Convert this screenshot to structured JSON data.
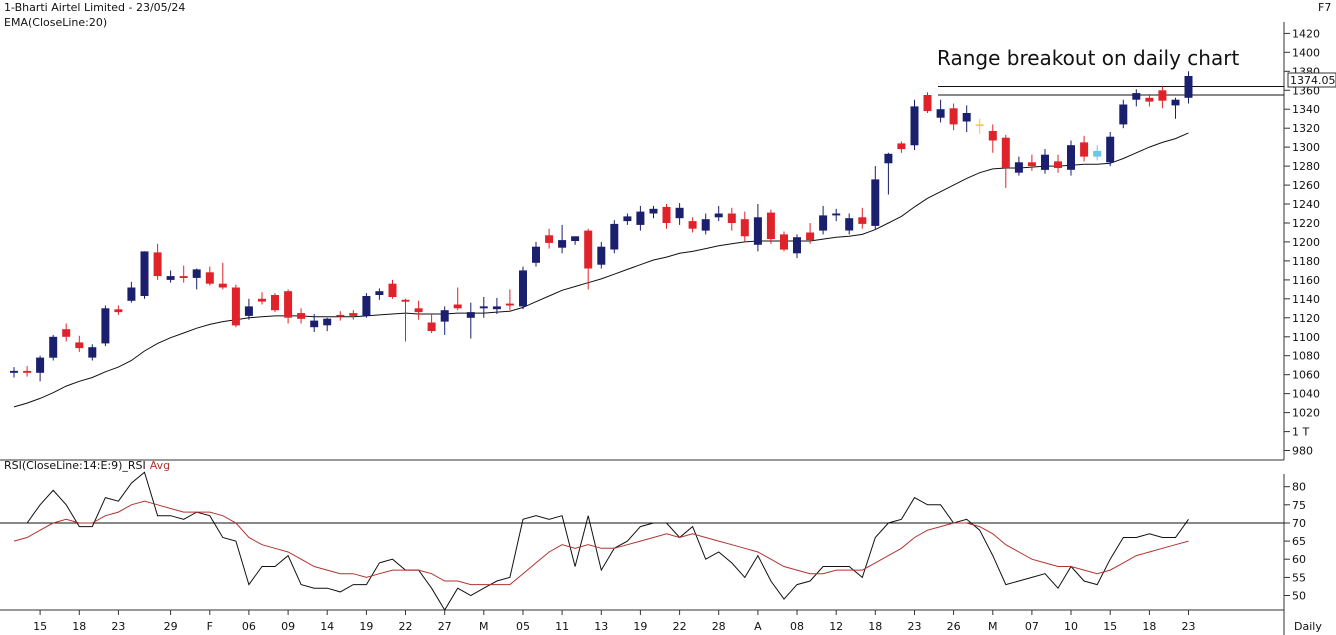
{
  "header": {
    "title": "1-Bharti Airtel Limited - 23/05/24",
    "indicator": "EMA(CloseLine:20)",
    "hotkey": "F7"
  },
  "annotation": "Range breakout on daily chart",
  "price_label": "1374.05",
  "rsi_label": {
    "name": "RSI(CloseLine:14:E:9)_RSI",
    "avg": "Avg"
  },
  "period_label": "Daily",
  "colors": {
    "up": "#1a1f6e",
    "down": "#e0232b",
    "neutral": "#f0c93a",
    "neutral2": "#69c7e8",
    "ema": "#111111",
    "rsi": "#111111",
    "rsi_avg": "#b3332e"
  },
  "chart_data": [
    {
      "type": "candlestick",
      "title": "1-Bharti Airtel Limited - 23/05/24",
      "series_name": "EMA(CloseLine:20)",
      "y_ticks": [
        "1420",
        "1400",
        "1380",
        "1360",
        "1340",
        "1320",
        "1300",
        "1280",
        "1260",
        "1240",
        "1220",
        "1200",
        "1180",
        "1160",
        "1140",
        "1120",
        "1100",
        "1080",
        "1060",
        "1040",
        "1020",
        "1 T",
        "980"
      ],
      "ylim": [
        970,
        1432
      ],
      "x_ticks": [
        "15",
        "18",
        "23",
        "29",
        "F",
        "06",
        "09",
        "14",
        "19",
        "22",
        "27",
        "M",
        "05",
        "11",
        "13",
        "19",
        "22",
        "28",
        "A",
        "08",
        "12",
        "18",
        "23",
        "26",
        "M",
        "07",
        "10",
        "15",
        "18",
        "23"
      ],
      "x_tick_index": [
        2,
        5,
        8,
        12,
        15,
        18,
        21,
        24,
        27,
        30,
        33,
        36,
        39,
        42,
        45,
        48,
        51,
        54,
        57,
        60,
        63,
        66,
        69,
        72,
        75,
        78,
        81,
        84,
        87,
        90
      ],
      "reference_lines": [
        1364,
        1355
      ],
      "candles": [
        {
          "o": 1062,
          "h": 1068,
          "l": 1057,
          "c": 1064
        },
        {
          "o": 1064,
          "h": 1069,
          "l": 1058,
          "c": 1062
        },
        {
          "o": 1062,
          "h": 1080,
          "l": 1053,
          "c": 1078
        },
        {
          "o": 1078,
          "h": 1102,
          "l": 1075,
          "c": 1100
        },
        {
          "o": 1108,
          "h": 1114,
          "l": 1095,
          "c": 1100
        },
        {
          "o": 1094,
          "h": 1101,
          "l": 1084,
          "c": 1088
        },
        {
          "o": 1078,
          "h": 1092,
          "l": 1075,
          "c": 1089
        },
        {
          "o": 1093,
          "h": 1133,
          "l": 1090,
          "c": 1130
        },
        {
          "o": 1129,
          "h": 1133,
          "l": 1123,
          "c": 1126
        },
        {
          "o": 1138,
          "h": 1158,
          "l": 1136,
          "c": 1152
        },
        {
          "o": 1143,
          "h": 1190,
          "l": 1140,
          "c": 1190
        },
        {
          "o": 1189,
          "h": 1198,
          "l": 1160,
          "c": 1164
        },
        {
          "o": 1160,
          "h": 1170,
          "l": 1157,
          "c": 1164
        },
        {
          "o": 1164,
          "h": 1175,
          "l": 1157,
          "c": 1162
        },
        {
          "o": 1162,
          "h": 1172,
          "l": 1150,
          "c": 1171
        },
        {
          "o": 1168,
          "h": 1174,
          "l": 1154,
          "c": 1156
        },
        {
          "o": 1156,
          "h": 1178,
          "l": 1150,
          "c": 1152
        },
        {
          "o": 1152,
          "h": 1155,
          "l": 1110,
          "c": 1112
        },
        {
          "o": 1122,
          "h": 1140,
          "l": 1118,
          "c": 1132
        },
        {
          "o": 1140,
          "h": 1147,
          "l": 1134,
          "c": 1137
        },
        {
          "o": 1144,
          "h": 1146,
          "l": 1126,
          "c": 1128
        },
        {
          "o": 1148,
          "h": 1150,
          "l": 1114,
          "c": 1120
        },
        {
          "o": 1125,
          "h": 1130,
          "l": 1114,
          "c": 1119
        },
        {
          "o": 1110,
          "h": 1124,
          "l": 1105,
          "c": 1117
        },
        {
          "o": 1112,
          "h": 1120,
          "l": 1106,
          "c": 1119
        },
        {
          "o": 1123,
          "h": 1127,
          "l": 1117,
          "c": 1122
        },
        {
          "o": 1125,
          "h": 1128,
          "l": 1118,
          "c": 1122
        },
        {
          "o": 1122,
          "h": 1146,
          "l": 1120,
          "c": 1143
        },
        {
          "o": 1144,
          "h": 1151,
          "l": 1139,
          "c": 1148
        },
        {
          "o": 1156,
          "h": 1160,
          "l": 1140,
          "c": 1142
        },
        {
          "o": 1139,
          "h": 1140,
          "l": 1095,
          "c": 1137
        },
        {
          "o": 1130,
          "h": 1138,
          "l": 1118,
          "c": 1126
        },
        {
          "o": 1115,
          "h": 1124,
          "l": 1104,
          "c": 1106
        },
        {
          "o": 1116,
          "h": 1132,
          "l": 1102,
          "c": 1128
        },
        {
          "o": 1134,
          "h": 1152,
          "l": 1128,
          "c": 1130
        },
        {
          "o": 1120,
          "h": 1136,
          "l": 1098,
          "c": 1126
        },
        {
          "o": 1130,
          "h": 1142,
          "l": 1120,
          "c": 1132
        },
        {
          "o": 1129,
          "h": 1141,
          "l": 1124,
          "c": 1132
        },
        {
          "o": 1135,
          "h": 1150,
          "l": 1128,
          "c": 1133
        },
        {
          "o": 1132,
          "h": 1174,
          "l": 1129,
          "c": 1170
        },
        {
          "o": 1178,
          "h": 1200,
          "l": 1174,
          "c": 1195
        },
        {
          "o": 1207,
          "h": 1214,
          "l": 1193,
          "c": 1199
        },
        {
          "o": 1194,
          "h": 1218,
          "l": 1188,
          "c": 1202
        },
        {
          "o": 1201,
          "h": 1206,
          "l": 1197,
          "c": 1206
        },
        {
          "o": 1212,
          "h": 1214,
          "l": 1150,
          "c": 1172
        },
        {
          "o": 1176,
          "h": 1200,
          "l": 1172,
          "c": 1195
        },
        {
          "o": 1192,
          "h": 1223,
          "l": 1188,
          "c": 1219
        },
        {
          "o": 1222,
          "h": 1230,
          "l": 1218,
          "c": 1227
        },
        {
          "o": 1218,
          "h": 1238,
          "l": 1212,
          "c": 1232
        },
        {
          "o": 1230,
          "h": 1238,
          "l": 1225,
          "c": 1235
        },
        {
          "o": 1237,
          "h": 1240,
          "l": 1214,
          "c": 1220
        },
        {
          "o": 1225,
          "h": 1241,
          "l": 1218,
          "c": 1236
        },
        {
          "o": 1222,
          "h": 1226,
          "l": 1210,
          "c": 1214
        },
        {
          "o": 1212,
          "h": 1230,
          "l": 1208,
          "c": 1224
        },
        {
          "o": 1226,
          "h": 1238,
          "l": 1222,
          "c": 1230
        },
        {
          "o": 1230,
          "h": 1236,
          "l": 1212,
          "c": 1220
        },
        {
          "o": 1224,
          "h": 1232,
          "l": 1200,
          "c": 1206
        },
        {
          "o": 1197,
          "h": 1240,
          "l": 1190,
          "c": 1226
        },
        {
          "o": 1231,
          "h": 1234,
          "l": 1198,
          "c": 1203
        },
        {
          "o": 1208,
          "h": 1211,
          "l": 1190,
          "c": 1192
        },
        {
          "o": 1188,
          "h": 1208,
          "l": 1183,
          "c": 1205
        },
        {
          "o": 1210,
          "h": 1220,
          "l": 1198,
          "c": 1202
        },
        {
          "o": 1212,
          "h": 1238,
          "l": 1208,
          "c": 1228
        },
        {
          "o": 1228,
          "h": 1235,
          "l": 1222,
          "c": 1230
        },
        {
          "o": 1212,
          "h": 1230,
          "l": 1208,
          "c": 1225
        },
        {
          "o": 1226,
          "h": 1236,
          "l": 1214,
          "c": 1219
        },
        {
          "o": 1217,
          "h": 1280,
          "l": 1213,
          "c": 1266
        },
        {
          "o": 1283,
          "h": 1294,
          "l": 1250,
          "c": 1293
        },
        {
          "o": 1304,
          "h": 1306,
          "l": 1294,
          "c": 1298
        },
        {
          "o": 1302,
          "h": 1350,
          "l": 1297,
          "c": 1343
        },
        {
          "o": 1355,
          "h": 1358,
          "l": 1336,
          "c": 1338
        },
        {
          "o": 1331,
          "h": 1350,
          "l": 1326,
          "c": 1340
        },
        {
          "o": 1341,
          "h": 1346,
          "l": 1318,
          "c": 1324
        },
        {
          "o": 1327,
          "h": 1344,
          "l": 1316,
          "c": 1336
        },
        {
          "o": 1324,
          "h": 1330,
          "l": 1314,
          "c": 1324
        },
        {
          "o": 1317,
          "h": 1324,
          "l": 1294,
          "c": 1307
        },
        {
          "o": 1310,
          "h": 1313,
          "l": 1257,
          "c": 1278
        },
        {
          "o": 1273,
          "h": 1290,
          "l": 1270,
          "c": 1284
        },
        {
          "o": 1284,
          "h": 1292,
          "l": 1275,
          "c": 1280
        },
        {
          "o": 1276,
          "h": 1298,
          "l": 1272,
          "c": 1292
        },
        {
          "o": 1285,
          "h": 1292,
          "l": 1273,
          "c": 1278
        },
        {
          "o": 1276,
          "h": 1307,
          "l": 1270,
          "c": 1302
        },
        {
          "o": 1305,
          "h": 1312,
          "l": 1285,
          "c": 1290
        },
        {
          "o": 1296,
          "h": 1302,
          "l": 1286,
          "c": 1290
        },
        {
          "o": 1284,
          "h": 1316,
          "l": 1280,
          "c": 1311
        },
        {
          "o": 1324,
          "h": 1350,
          "l": 1320,
          "c": 1345
        },
        {
          "o": 1350,
          "h": 1361,
          "l": 1343,
          "c": 1357
        },
        {
          "o": 1352,
          "h": 1356,
          "l": 1343,
          "c": 1348
        },
        {
          "o": 1360,
          "h": 1364,
          "l": 1341,
          "c": 1349
        },
        {
          "o": 1344,
          "h": 1352,
          "l": 1330,
          "c": 1350
        },
        {
          "o": 1352,
          "h": 1380,
          "l": 1346,
          "c": 1375
        }
      ],
      "ema": [
        1026,
        1030,
        1035,
        1041,
        1048,
        1053,
        1057,
        1063,
        1068,
        1075,
        1085,
        1093,
        1099,
        1104,
        1109,
        1113,
        1116,
        1118,
        1120,
        1121,
        1122,
        1122,
        1122,
        1121,
        1121,
        1121,
        1121,
        1122,
        1123,
        1124,
        1125,
        1124,
        1124,
        1124,
        1125,
        1125,
        1125,
        1126,
        1127,
        1131,
        1137,
        1143,
        1149,
        1153,
        1157,
        1161,
        1166,
        1171,
        1176,
        1181,
        1184,
        1188,
        1190,
        1193,
        1196,
        1198,
        1200,
        1201,
        1201,
        1201,
        1201,
        1201,
        1203,
        1205,
        1206,
        1208,
        1213,
        1220,
        1227,
        1237,
        1246,
        1253,
        1260,
        1267,
        1273,
        1277,
        1278,
        1278,
        1279,
        1280,
        1280,
        1281,
        1282,
        1282,
        1283,
        1288,
        1294,
        1300,
        1305,
        1309,
        1315
      ]
    },
    {
      "type": "line",
      "title": "RSI(CloseLine:14:E:9)_RSI",
      "y_ticks": [
        "80",
        "75",
        "70",
        "65",
        "60",
        "55",
        "50"
      ],
      "ylim": [
        46,
        83.5
      ],
      "reference_line": 70,
      "series": [
        {
          "name": "RSI(CloseLine:14:E:9)_RSI",
          "values": [
            70,
            70,
            75,
            79,
            75,
            69,
            69,
            77,
            76,
            81,
            84,
            72,
            72,
            71,
            73,
            72,
            66,
            65,
            53,
            58,
            58,
            61,
            53,
            52,
            52,
            51,
            53,
            53,
            59,
            60,
            57,
            57,
            52,
            46,
            52,
            50,
            52,
            54,
            55,
            71,
            72,
            71,
            72,
            58,
            72,
            57,
            63,
            65,
            69,
            70,
            70,
            66,
            69,
            60,
            62,
            59,
            55,
            61,
            54,
            49,
            53,
            54,
            58,
            58,
            58,
            55,
            66,
            70,
            71,
            77,
            75,
            75,
            70,
            71,
            68,
            61,
            53,
            54,
            55,
            56,
            52,
            58,
            54,
            53,
            60,
            66,
            66,
            67,
            66,
            66,
            71
          ]
        },
        {
          "name": "Avg",
          "values": [
            65,
            66,
            68,
            70,
            71,
            70,
            70,
            72,
            73,
            75,
            76,
            75,
            74,
            73,
            73,
            73,
            72,
            70,
            66,
            64,
            63,
            62,
            60,
            58,
            57,
            56,
            56,
            55,
            56,
            57,
            57,
            57,
            56,
            54,
            54,
            53,
            53,
            53,
            53,
            56,
            59,
            62,
            64,
            63,
            64,
            63,
            63,
            64,
            65,
            66,
            67,
            66,
            67,
            66,
            65,
            64,
            63,
            62,
            60,
            58,
            57,
            56,
            56,
            57,
            57,
            57,
            59,
            61,
            63,
            66,
            68,
            69,
            70,
            70,
            69,
            67,
            64,
            62,
            60,
            59,
            58,
            58,
            57,
            56,
            57,
            59,
            61,
            62,
            63,
            64,
            65
          ]
        }
      ]
    }
  ]
}
